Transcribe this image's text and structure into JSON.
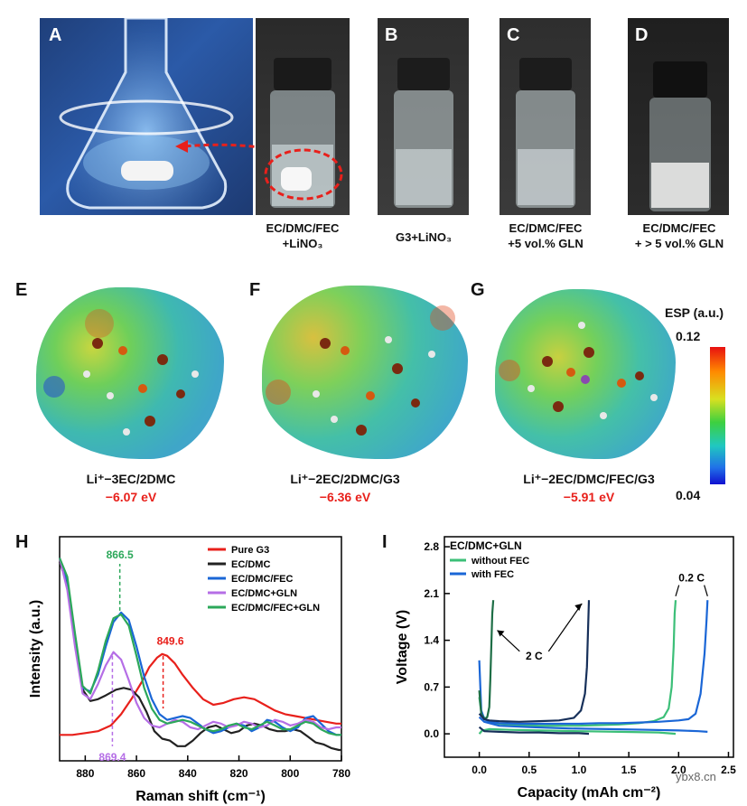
{
  "photos": {
    "A": {
      "label": "A"
    },
    "B": {
      "label": "B",
      "caption": "G3+LiNO₃"
    },
    "C": {
      "label": "C",
      "caption_line1": "EC/DMC/FEC",
      "caption_line2": "+5 vol.% GLN"
    },
    "D": {
      "label": "D",
      "caption_line1": "EC/DMC/FEC",
      "caption_line2": "+ > 5 vol.% GLN"
    },
    "A2": {
      "caption_line1": "EC/DMC/FEC",
      "caption_line2": "+LiNO₃"
    }
  },
  "molecules": [
    {
      "label": "E",
      "name": "Li⁺−3EC/2DMC",
      "energy": "−6.07 eV"
    },
    {
      "label": "F",
      "name": "Li⁺−2EC/2DMC/G3",
      "energy": "−6.36 eV"
    },
    {
      "label": "G",
      "name": "Li⁺−2EC/DMC/FEC/G3",
      "energy": "−5.91 eV"
    }
  ],
  "esp_scale": {
    "title": "ESP (a.u.)",
    "max": "0.12",
    "min": "0.04"
  },
  "watermark": "ybx8.cn",
  "colors": {
    "red": "#e8201b",
    "black": "#222222",
    "blue": "#1a66d6",
    "purple": "#b56ee6",
    "green": "#2ca85a",
    "darknavy": "#17305a",
    "lightgreen": "#3cbf78"
  },
  "chart_data": [
    {
      "panel": "H",
      "type": "line",
      "title": "",
      "xlabel": "Raman shift (cm⁻¹)",
      "ylabel": "Intensity (a.u.)",
      "xlim": [
        890,
        780
      ],
      "ylim": [
        0,
        1
      ],
      "xticks": [
        "880",
        "860",
        "840",
        "820",
        "800",
        "780"
      ],
      "legend_position": "top-right",
      "annotations": [
        {
          "text": "866.5",
          "x": 866.5,
          "color": "#2ca85a"
        },
        {
          "text": "849.6",
          "x": 849.6,
          "color": "#e8201b"
        },
        {
          "text": "869.4",
          "x": 869.4,
          "color": "#b56ee6"
        }
      ],
      "series": [
        {
          "name": "Pure G3",
          "color": "#e8201b",
          "x": [
            890,
            885,
            880,
            875,
            870,
            866,
            862,
            858,
            855,
            852,
            850,
            848,
            845,
            842,
            838,
            834,
            830,
            826,
            822,
            818,
            814,
            810,
            806,
            802,
            798,
            794,
            790,
            786,
            782,
            780
          ],
          "y": [
            0.08,
            0.08,
            0.09,
            0.1,
            0.13,
            0.19,
            0.27,
            0.36,
            0.44,
            0.49,
            0.51,
            0.5,
            0.46,
            0.4,
            0.33,
            0.27,
            0.24,
            0.25,
            0.27,
            0.28,
            0.27,
            0.24,
            0.21,
            0.19,
            0.18,
            0.17,
            0.16,
            0.15,
            0.14,
            0.14
          ]
        },
        {
          "name": "EC/DMC",
          "color": "#222222",
          "x": [
            890,
            887,
            884,
            881,
            878,
            875,
            872,
            868,
            865,
            862,
            859,
            856,
            853,
            850,
            847,
            844,
            841,
            838,
            835,
            832,
            829,
            826,
            823,
            820,
            817,
            814,
            811,
            808,
            805,
            802,
            799,
            796,
            793,
            790,
            787,
            784,
            781,
            780
          ],
          "y": [
            1.0,
            0.88,
            0.58,
            0.32,
            0.26,
            0.27,
            0.29,
            0.32,
            0.33,
            0.32,
            0.28,
            0.2,
            0.1,
            0.06,
            0.05,
            0.02,
            0.02,
            0.05,
            0.09,
            0.12,
            0.13,
            0.11,
            0.09,
            0.1,
            0.13,
            0.14,
            0.13,
            0.11,
            0.1,
            0.1,
            0.11,
            0.1,
            0.07,
            0.04,
            0.03,
            0.01,
            0.0,
            0.0
          ]
        },
        {
          "name": "EC/DMC/FEC",
          "color": "#1a66d6",
          "x": [
            890,
            887,
            884,
            881,
            878,
            875,
            872,
            869,
            866,
            863,
            860,
            857,
            854,
            851,
            848,
            845,
            842,
            839,
            836,
            833,
            830,
            827,
            824,
            821,
            818,
            815,
            812,
            809,
            806,
            803,
            800,
            797,
            794,
            791,
            788,
            785,
            782,
            780
          ],
          "y": [
            1.02,
            0.9,
            0.6,
            0.33,
            0.31,
            0.4,
            0.55,
            0.68,
            0.73,
            0.69,
            0.55,
            0.39,
            0.27,
            0.19,
            0.16,
            0.17,
            0.18,
            0.17,
            0.14,
            0.11,
            0.09,
            0.1,
            0.12,
            0.14,
            0.13,
            0.1,
            0.12,
            0.16,
            0.15,
            0.12,
            0.1,
            0.12,
            0.17,
            0.18,
            0.14,
            0.1,
            0.08,
            0.08
          ]
        },
        {
          "name": "EC/DMC+GLN",
          "color": "#b56ee6",
          "x": [
            890,
            887,
            884,
            881,
            878,
            875,
            872,
            869,
            866,
            863,
            860,
            857,
            854,
            851,
            848,
            845,
            842,
            839,
            836,
            833,
            830,
            827,
            824,
            821,
            818,
            815,
            812,
            809,
            806,
            803,
            800,
            797,
            794,
            791,
            788,
            785,
            782,
            780
          ],
          "y": [
            1.02,
            0.85,
            0.55,
            0.3,
            0.27,
            0.35,
            0.45,
            0.52,
            0.48,
            0.37,
            0.25,
            0.17,
            0.13,
            0.12,
            0.14,
            0.16,
            0.15,
            0.12,
            0.11,
            0.13,
            0.15,
            0.14,
            0.12,
            0.13,
            0.15,
            0.14,
            0.12,
            0.13,
            0.16,
            0.15,
            0.13,
            0.14,
            0.16,
            0.15,
            0.12,
            0.11,
            0.12,
            0.12
          ]
        },
        {
          "name": "EC/DMC/FEC+GLN",
          "color": "#2ca85a",
          "x": [
            890,
            887,
            884,
            881,
            878,
            875,
            872,
            869,
            866,
            863,
            860,
            857,
            854,
            851,
            848,
            845,
            842,
            839,
            836,
            833,
            830,
            827,
            824,
            821,
            818,
            815,
            812,
            809,
            806,
            803,
            800,
            797,
            794,
            791,
            788,
            785,
            782,
            780
          ],
          "y": [
            1.02,
            0.92,
            0.62,
            0.34,
            0.3,
            0.42,
            0.58,
            0.7,
            0.72,
            0.66,
            0.5,
            0.33,
            0.22,
            0.16,
            0.14,
            0.15,
            0.16,
            0.15,
            0.13,
            0.11,
            0.1,
            0.11,
            0.13,
            0.14,
            0.12,
            0.11,
            0.13,
            0.15,
            0.13,
            0.11,
            0.11,
            0.13,
            0.15,
            0.14,
            0.11,
            0.09,
            0.08,
            0.08
          ]
        }
      ]
    },
    {
      "panel": "I",
      "type": "line",
      "title": "EC/DMC+GLN",
      "xlabel": "Capacity (mAh cm⁻²)",
      "ylabel": "Voltage (V)",
      "xlim": [
        -0.35,
        2.55
      ],
      "ylim": [
        -0.35,
        2.95
      ],
      "xticks": [
        "0.0",
        "0.5",
        "1.0",
        "1.5",
        "2.0",
        "2.5"
      ],
      "yticks": [
        "0.0",
        "0.7",
        "1.4",
        "2.1",
        "2.8"
      ],
      "legend_position": "top-left",
      "annotations": [
        {
          "text": "2 C",
          "x": 0.55,
          "y": 1.18
        },
        {
          "text": "0.2 C",
          "x": 2.13,
          "y": 2.28
        }
      ],
      "series": [
        {
          "name": "without FEC",
          "color": "#3cbf78",
          "legend": true,
          "x": [
            0.0,
            0.02,
            0.05,
            0.1,
            0.2,
            0.4,
            0.6,
            0.8,
            1.0,
            1.2,
            1.4,
            1.6,
            1.75,
            1.85,
            1.9,
            1.93,
            1.95,
            1.96,
            1.97
          ],
          "y": [
            0.55,
            0.32,
            0.24,
            0.18,
            0.15,
            0.13,
            0.12,
            0.12,
            0.12,
            0.13,
            0.14,
            0.16,
            0.19,
            0.25,
            0.38,
            0.7,
            1.3,
            1.8,
            2.0
          ]
        },
        {
          "name": "without FEC discharge",
          "color": "#3cbf78",
          "legend": false,
          "x": [
            0.0,
            0.03,
            0.1,
            0.3,
            0.6,
            1.0,
            1.4,
            1.8,
            1.97
          ],
          "y": [
            0.0,
            0.05,
            0.07,
            0.06,
            0.05,
            0.04,
            0.03,
            0.02,
            0.0
          ]
        },
        {
          "name": "with FEC",
          "color": "#1a66d6",
          "legend": true,
          "x": [
            0.0,
            0.02,
            0.05,
            0.1,
            0.2,
            0.4,
            0.6,
            0.8,
            1.0,
            1.2,
            1.4,
            1.6,
            1.8,
            2.0,
            2.1,
            2.17,
            2.22,
            2.26,
            2.28,
            2.29
          ],
          "y": [
            1.1,
            0.35,
            0.22,
            0.18,
            0.16,
            0.15,
            0.15,
            0.15,
            0.15,
            0.16,
            0.16,
            0.17,
            0.18,
            0.2,
            0.22,
            0.3,
            0.6,
            1.2,
            1.7,
            2.0
          ]
        },
        {
          "name": "with FEC discharge",
          "color": "#1a66d6",
          "legend": false,
          "x": [
            0.0,
            0.05,
            0.2,
            0.5,
            0.9,
            1.3,
            1.7,
            2.0,
            2.2,
            2.29
          ],
          "y": [
            0.25,
            0.18,
            0.12,
            0.1,
            0.08,
            0.07,
            0.06,
            0.05,
            0.04,
            0.03
          ]
        },
        {
          "name": "2C without FEC",
          "color": "#1e6e46",
          "legend": false,
          "x": [
            0.0,
            0.02,
            0.05,
            0.08,
            0.1,
            0.11,
            0.12,
            0.13,
            0.14
          ],
          "y": [
            0.65,
            0.3,
            0.22,
            0.25,
            0.4,
            0.8,
            1.3,
            1.8,
            2.0
          ]
        },
        {
          "name": "2C with FEC",
          "color": "#17305a",
          "legend": false,
          "x": [
            0.0,
            0.05,
            0.1,
            0.2,
            0.4,
            0.6,
            0.8,
            0.95,
            1.02,
            1.06,
            1.08,
            1.09,
            1.1
          ],
          "y": [
            0.3,
            0.22,
            0.2,
            0.19,
            0.18,
            0.19,
            0.2,
            0.24,
            0.35,
            0.6,
            1.0,
            1.5,
            2.0
          ]
        },
        {
          "name": "2C discharge",
          "color": "#17305a",
          "legend": false,
          "x": [
            0.0,
            0.05,
            0.2,
            0.4,
            0.6,
            0.8,
            1.0,
            1.1
          ],
          "y": [
            0.1,
            0.04,
            0.03,
            0.02,
            0.02,
            0.01,
            0.01,
            0.0
          ]
        }
      ]
    }
  ]
}
